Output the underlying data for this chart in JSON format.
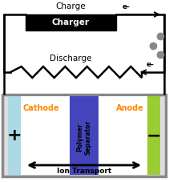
{
  "fig_width": 2.11,
  "fig_height": 2.27,
  "dpi": 100,
  "bg_color": "#ffffff",
  "title_charge": "Charge",
  "title_discharge": "Discharge",
  "charger_box_color": "#000000",
  "charger_text": "Charger",
  "charger_text_color": "#ffffff",
  "cathode_color": "#add8e6",
  "cathode_label": "Cathode",
  "cathode_label_color": "#ff8800",
  "anode_color": "#9acd32",
  "anode_label": "Anode",
  "anode_label_color": "#ff8800",
  "separator_color": "#4444bb",
  "separator_label": "Polymer\nSeparator",
  "separator_label_color": "#000000",
  "battery_bg": "#ffffff",
  "battery_border": "#888888",
  "plus_color": "#000000",
  "minus_color": "#000000",
  "ion_transport_label": "Ion Transport",
  "ion_transport_color": "#000000",
  "wire_color": "#000000",
  "dot_color": "#888888",
  "lw": 1.8
}
